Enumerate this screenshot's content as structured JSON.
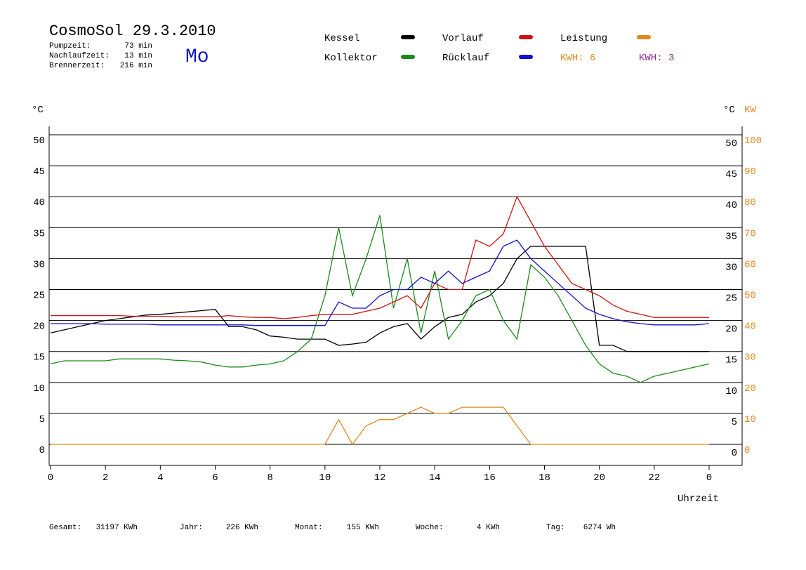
{
  "header": {
    "title": "CosmoSol 29.3.2010",
    "weekday": "Mo",
    "stats": [
      [
        "Pumpzeit:",
        "73 min"
      ],
      [
        "Nachlaufzeit:",
        "13 min"
      ],
      [
        "Brennerzeit:",
        "216 min"
      ]
    ]
  },
  "legend_extra": [
    {
      "text": "KWH: 6",
      "color": "#e08a1e"
    },
    {
      "text": "KWH: 3",
      "color": "#8a2a9a"
    }
  ],
  "footer": [
    [
      "Gesamt:",
      "31197 KWh"
    ],
    [
      "Jahr:",
      "226 KWh"
    ],
    [
      "Monat:",
      "155 KWh"
    ],
    [
      "Woche:",
      "4 KWh"
    ],
    [
      "Tag:",
      "6274 Wh"
    ]
  ],
  "chart_data": {
    "type": "line",
    "xlabel": "Uhrzeit",
    "ylabel": "°C",
    "y2label_left": "°C",
    "y2label": "KW",
    "x": [
      0,
      0.5,
      1,
      1.5,
      2,
      2.5,
      3,
      3.5,
      4,
      4.5,
      5,
      5.5,
      6,
      6.5,
      7,
      7.5,
      8,
      8.5,
      9,
      9.5,
      10,
      10.5,
      11,
      11.5,
      12,
      12.5,
      13,
      13.5,
      14,
      14.5,
      15,
      15.5,
      16,
      16.5,
      17,
      17.5,
      18,
      18.5,
      19,
      19.5,
      20,
      20.5,
      21,
      21.5,
      22,
      22.5,
      23,
      23.5,
      24
    ],
    "xlim": [
      0,
      24
    ],
    "xticks": [
      0,
      2,
      4,
      6,
      8,
      10,
      12,
      14,
      16,
      18,
      20,
      22,
      {
        "value": 24,
        "label": "0"
      }
    ],
    "ylim": [
      -3.4,
      52
    ],
    "yticks": [
      0,
      5,
      10,
      15,
      20,
      25,
      30,
      35,
      40,
      45,
      50
    ],
    "y2lim": [
      -6.8,
      104
    ],
    "y2ticks": [
      0,
      10,
      20,
      30,
      40,
      50,
      60,
      70,
      80,
      90,
      100
    ],
    "grid": true,
    "series": [
      {
        "name": "Kessel",
        "color": "#000000",
        "values": [
          18,
          18.5,
          19,
          19.5,
          20,
          20.3,
          20.6,
          20.9,
          21,
          21.2,
          21.4,
          21.6,
          21.8,
          19,
          19,
          18.5,
          17.5,
          17.3,
          17,
          17,
          17,
          16,
          16.2,
          16.5,
          18,
          19,
          19.5,
          17,
          19,
          20.5,
          21,
          23,
          24,
          26,
          30,
          32,
          32,
          32,
          32,
          32,
          16,
          16,
          15,
          15,
          15,
          15,
          15,
          15,
          15
        ]
      },
      {
        "name": "Kollektor",
        "color": "#1a8a1a",
        "values": [
          13,
          13.5,
          13.5,
          13.5,
          13.5,
          13.8,
          13.8,
          13.8,
          13.8,
          13.6,
          13.5,
          13.3,
          12.8,
          12.5,
          12.5,
          12.8,
          13,
          13.5,
          15,
          17,
          24,
          35,
          24,
          30,
          37,
          22,
          30,
          18,
          28,
          17,
          20,
          24,
          25,
          20,
          17,
          29,
          27,
          24,
          20,
          16,
          13,
          11.5,
          11,
          10,
          11,
          11.5,
          12,
          12.5,
          13
        ]
      },
      {
        "name": "Vorlauf",
        "color": "#d01010",
        "values": [
          20.8,
          20.8,
          20.8,
          20.8,
          20.8,
          20.8,
          20.7,
          20.7,
          20.7,
          20.6,
          20.6,
          20.6,
          20.6,
          20.8,
          20.6,
          20.5,
          20.5,
          20.3,
          20.5,
          20.8,
          21,
          21,
          21,
          21.5,
          22,
          23,
          24,
          22,
          26,
          25,
          25,
          33,
          32,
          34,
          40,
          36,
          32,
          29,
          26,
          25,
          24,
          22.5,
          21.5,
          21,
          20.5,
          20.5,
          20.5,
          20.5,
          20.5
        ]
      },
      {
        "name": "Rücklauf",
        "color": "#1010d0",
        "values": [
          19.5,
          19.5,
          19.5,
          19.5,
          19.4,
          19.4,
          19.4,
          19.4,
          19.3,
          19.3,
          19.3,
          19.3,
          19.3,
          19.3,
          19.3,
          19.2,
          19.2,
          19.2,
          19.2,
          19.2,
          19.2,
          23,
          22,
          22,
          24,
          25,
          25,
          27,
          26,
          28,
          26,
          27,
          28,
          32,
          33,
          30,
          28,
          26,
          24,
          22,
          21,
          20.3,
          19.8,
          19.5,
          19.3,
          19.3,
          19.3,
          19.3,
          19.5
        ]
      },
      {
        "name": "Leistung",
        "color": "#e08a1e",
        "axis": "y2",
        "values": [
          0,
          0,
          0,
          0,
          0,
          0,
          0,
          0,
          0,
          0,
          0,
          0,
          0,
          0,
          0,
          0,
          0,
          0,
          0,
          0,
          0,
          8,
          0,
          6,
          8,
          8,
          10,
          12,
          10,
          10,
          12,
          12,
          12,
          12,
          6,
          0,
          0,
          0,
          0,
          0,
          0,
          0,
          0,
          0,
          0,
          0,
          0,
          0,
          0
        ]
      }
    ]
  }
}
